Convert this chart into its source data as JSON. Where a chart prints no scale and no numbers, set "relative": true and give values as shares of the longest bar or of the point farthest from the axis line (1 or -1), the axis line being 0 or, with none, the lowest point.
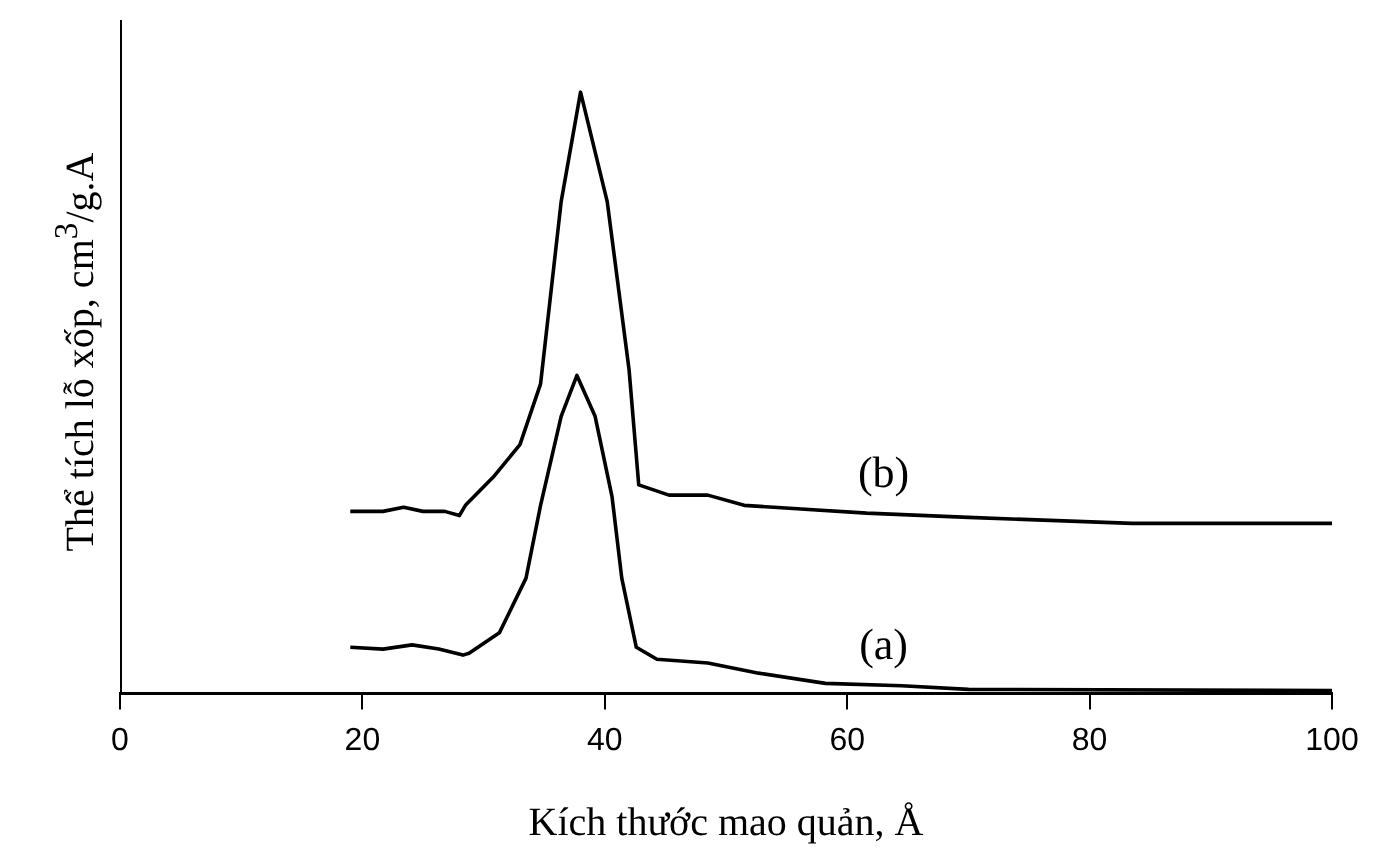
{
  "chart_data": {
    "type": "line",
    "relative": true,
    "xlabel": "Kích thước mao quản, Å",
    "ylabel": "Thể tích lỗ xốp, cm$^{3}$/g.A",
    "xlim": [
      0,
      100
    ],
    "xticks": [
      0,
      20,
      40,
      60,
      80,
      100
    ],
    "grid": false,
    "legend": false,
    "marker": "none",
    "line_style": "solid",
    "series": [
      {
        "name": "(b)",
        "color": "#000000",
        "x": [
          19,
          21.7,
          23.4,
          25,
          26.8,
          28,
          28.5,
          30.8,
          33,
          34.7,
          36.4,
          38,
          40.2,
          42,
          42.8,
          45.3,
          48.5,
          51.5,
          61.6,
          70,
          83.5,
          100
        ],
        "values": [
          0.303,
          0.303,
          0.31,
          0.303,
          0.303,
          0.296,
          0.313,
          0.36,
          0.414,
          0.515,
          0.818,
          1,
          0.818,
          0.539,
          0.347,
          0.33,
          0.33,
          0.313,
          0.3,
          0.293,
          0.283,
          0.283
        ]
      },
      {
        "name": "(a)",
        "color": "#000000",
        "x": [
          19,
          21.7,
          24.1,
          26.3,
          28.3,
          28.8,
          31.3,
          33.5,
          34.7,
          36.4,
          37.7,
          39.2,
          40.6,
          41.4,
          42.6,
          44.3,
          48.5,
          52.7,
          58.2,
          64.5,
          70,
          100
        ],
        "values": [
          0.077,
          0.074,
          0.081,
          0.074,
          0.064,
          0.067,
          0.101,
          0.192,
          0.313,
          0.461,
          0.529,
          0.461,
          0.327,
          0.192,
          0.077,
          0.057,
          0.051,
          0.034,
          0.017,
          0.013,
          0.007,
          0.005
        ]
      }
    ]
  }
}
